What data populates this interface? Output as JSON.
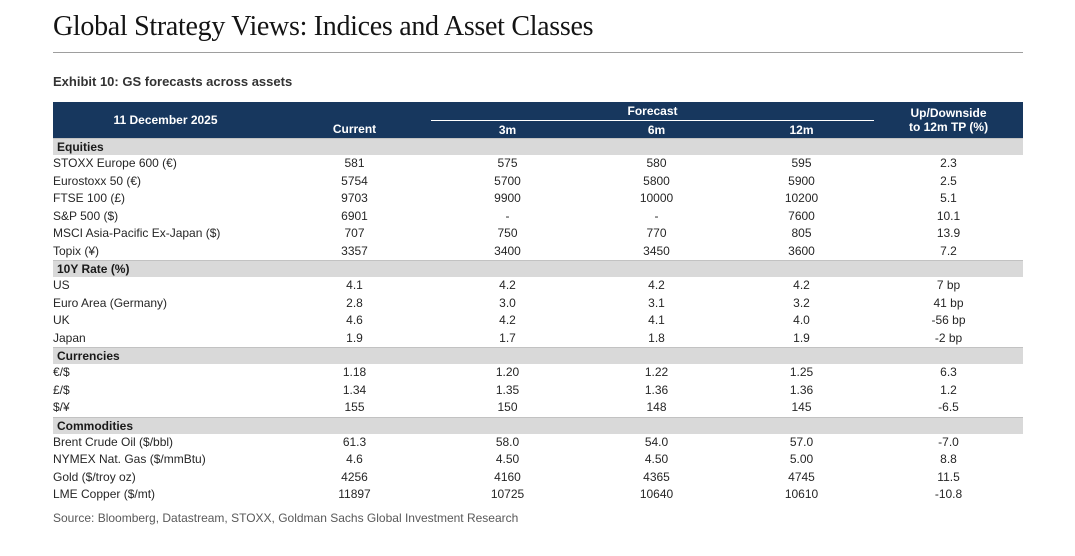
{
  "page": {
    "title": "Global Strategy Views: Indices and Asset Classes",
    "exhibit_title": "Exhibit 10: GS forecasts across assets",
    "source": "Source: Bloomberg, Datastream, STOXX, Goldman Sachs Global Investment Research"
  },
  "colors": {
    "header_bg": "#17375E",
    "section_bg": "#D9D9D9",
    "header_text": "#FFFFFF"
  },
  "table": {
    "date_label": "11 December 2025",
    "columns": {
      "current": "Current",
      "forecast_group": "Forecast",
      "m3": "3m",
      "m6": "6m",
      "m12": "12m",
      "updown_line1": "Up/Downside",
      "updown_line2": "to 12m TP (%)"
    },
    "sections": [
      {
        "name": "Equities",
        "rows": [
          {
            "label": "STOXX Europe 600 (€)",
            "current": "581",
            "m3": "575",
            "m6": "580",
            "m12": "595",
            "updown": "2.3"
          },
          {
            "label": "Eurostoxx 50 (€)",
            "current": "5754",
            "m3": "5700",
            "m6": "5800",
            "m12": "5900",
            "updown": "2.5"
          },
          {
            "label": "FTSE 100 (£)",
            "current": "9703",
            "m3": "9900",
            "m6": "10000",
            "m12": "10200",
            "updown": "5.1"
          },
          {
            "label": "S&P 500 ($)",
            "current": "6901",
            "m3": "-",
            "m6": "-",
            "m12": "7600",
            "updown": "10.1"
          },
          {
            "label": "MSCI Asia-Pacific Ex-Japan ($)",
            "current": "707",
            "m3": "750",
            "m6": "770",
            "m12": "805",
            "updown": "13.9"
          },
          {
            "label": "Topix (¥)",
            "current": "3357",
            "m3": "3400",
            "m6": "3450",
            "m12": "3600",
            "updown": "7.2"
          }
        ]
      },
      {
        "name": "10Y Rate (%)",
        "rows": [
          {
            "label": "US",
            "current": "4.1",
            "m3": "4.2",
            "m6": "4.2",
            "m12": "4.2",
            "updown": "7 bp"
          },
          {
            "label": "Euro Area (Germany)",
            "current": "2.8",
            "m3": "3.0",
            "m6": "3.1",
            "m12": "3.2",
            "updown": "41 bp"
          },
          {
            "label": "UK",
            "current": "4.6",
            "m3": "4.2",
            "m6": "4.1",
            "m12": "4.0",
            "updown": "-56 bp"
          },
          {
            "label": "Japan",
            "current": "1.9",
            "m3": "1.7",
            "m6": "1.8",
            "m12": "1.9",
            "updown": "-2 bp"
          }
        ]
      },
      {
        "name": "Currencies",
        "rows": [
          {
            "label": "€/$",
            "current": "1.18",
            "m3": "1.20",
            "m6": "1.22",
            "m12": "1.25",
            "updown": "6.3"
          },
          {
            "label": "£/$",
            "current": "1.34",
            "m3": "1.35",
            "m6": "1.36",
            "m12": "1.36",
            "updown": "1.2"
          },
          {
            "label": "$/¥",
            "current": "155",
            "m3": "150",
            "m6": "148",
            "m12": "145",
            "updown": "-6.5"
          }
        ]
      },
      {
        "name": "Commodities",
        "rows": [
          {
            "label": "Brent Crude Oil ($/bbl)",
            "current": "61.3",
            "m3": "58.0",
            "m6": "54.0",
            "m12": "57.0",
            "updown": "-7.0"
          },
          {
            "label": "NYMEX Nat. Gas ($/mmBtu)",
            "current": "4.6",
            "m3": "4.50",
            "m6": "4.50",
            "m12": "5.00",
            "updown": "8.8"
          },
          {
            "label": "Gold ($/troy oz)",
            "current": "4256",
            "m3": "4160",
            "m6": "4365",
            "m12": "4745",
            "updown": "11.5"
          },
          {
            "label": "LME Copper ($/mt)",
            "current": "11897",
            "m3": "10725",
            "m6": "10640",
            "m12": "10610",
            "updown": "-10.8"
          }
        ]
      }
    ]
  }
}
